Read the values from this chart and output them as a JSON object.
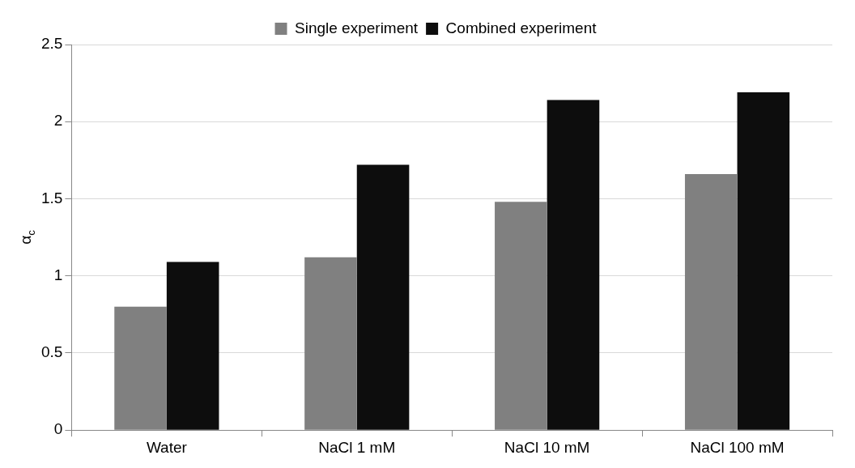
{
  "chart_data": {
    "type": "bar",
    "ylabel": "α$_{c}$",
    "categories": [
      "Water",
      "NaCl 1 mM",
      "NaCl 10 mM",
      "NaCl 100 mM"
    ],
    "series": [
      {
        "name": "Single experiment",
        "color": "#808080",
        "values": [
          0.8,
          1.12,
          1.48,
          1.66
        ]
      },
      {
        "name": "Combined experiment",
        "color": "#0d0d0d",
        "values": [
          1.09,
          1.72,
          2.14,
          2.19
        ]
      }
    ],
    "ylim": [
      0,
      2.5
    ],
    "yticks": [
      0,
      0.5,
      1,
      1.5,
      2,
      2.5
    ],
    "grid": "y",
    "legend": "top"
  }
}
